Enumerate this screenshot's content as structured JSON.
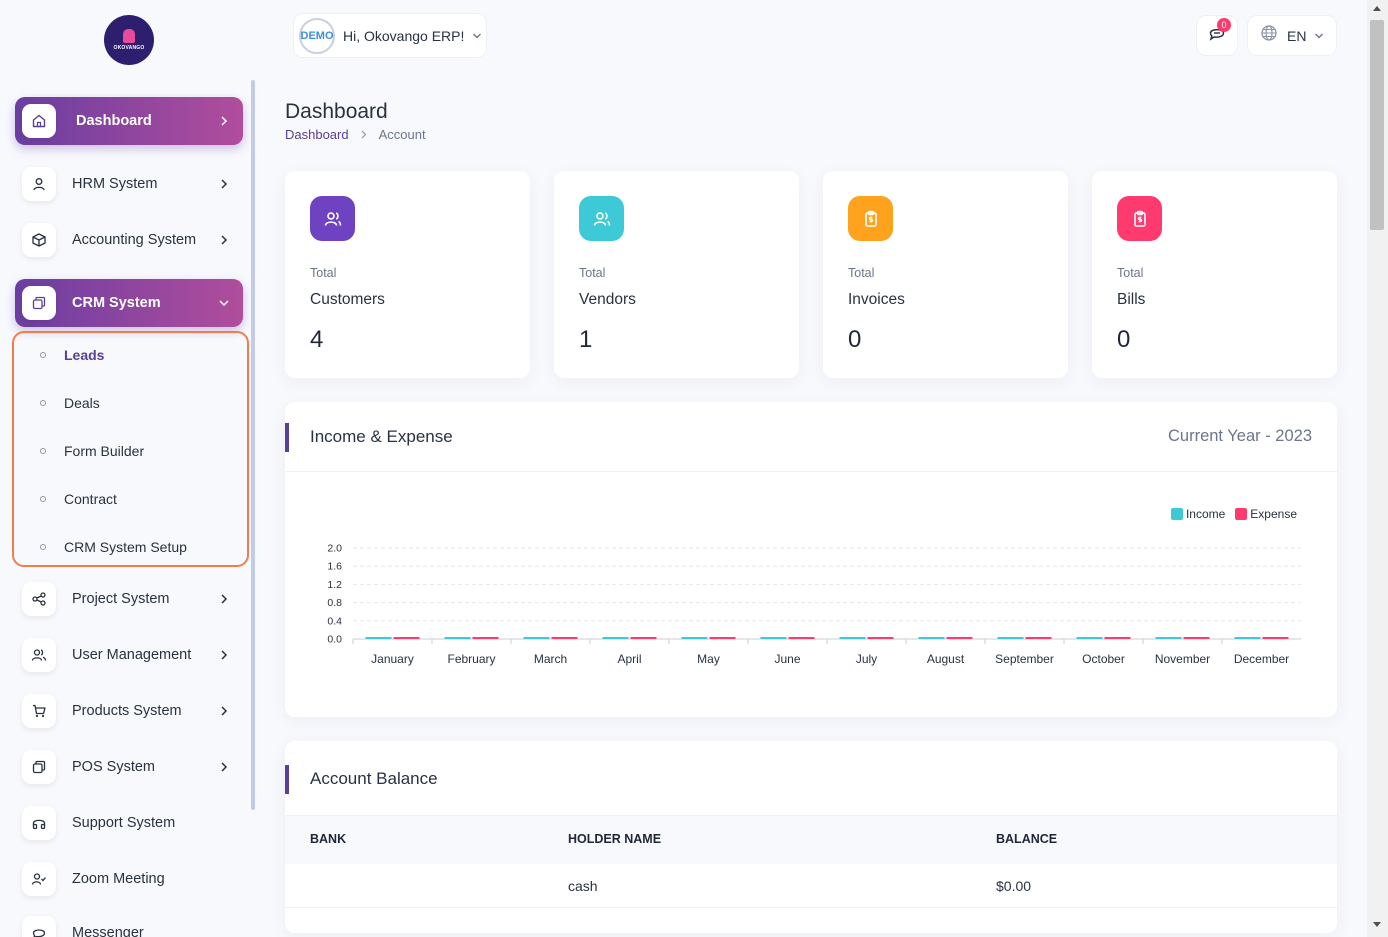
{
  "brand": {
    "logo_text": "OKOVANGO"
  },
  "sidebar": {
    "items": [
      {
        "label": "Dashboard"
      },
      {
        "label": "HRM System"
      },
      {
        "label": "Accounting System"
      },
      {
        "label": "CRM System"
      },
      {
        "label": "Project System"
      },
      {
        "label": "User Management"
      },
      {
        "label": "Products System"
      },
      {
        "label": "POS System"
      },
      {
        "label": "Support System"
      },
      {
        "label": "Zoom Meeting"
      },
      {
        "label": "Messenger"
      }
    ],
    "crm_submenu": [
      {
        "label": "Leads"
      },
      {
        "label": "Deals"
      },
      {
        "label": "Form Builder"
      },
      {
        "label": "Contract"
      },
      {
        "label": "CRM System Setup"
      }
    ]
  },
  "header": {
    "avatar_text": "DEMO",
    "greeting": "Hi, Okovango ERP!",
    "notification_count": "0",
    "language": "EN"
  },
  "page": {
    "title": "Dashboard",
    "breadcrumb": [
      "Dashboard",
      "Account"
    ]
  },
  "stats": [
    {
      "label": "Total",
      "name": "Customers",
      "value": "4",
      "color": "#6f42c1"
    },
    {
      "label": "Total",
      "name": "Vendors",
      "value": "1",
      "color": "#3ec9d6"
    },
    {
      "label": "Total",
      "name": "Invoices",
      "value": "0",
      "color": "#ffa21d"
    },
    {
      "label": "Total",
      "name": "Bills",
      "value": "0",
      "color": "#ff3a6e"
    }
  ],
  "income_expense": {
    "title": "Income & Expense",
    "period": "Current Year - 2023"
  },
  "chart_data": {
    "type": "bar",
    "categories": [
      "January",
      "February",
      "March",
      "April",
      "May",
      "June",
      "July",
      "August",
      "September",
      "October",
      "November",
      "December"
    ],
    "series": [
      {
        "name": "Income",
        "color": "#3ec9d6",
        "values": [
          0,
          0,
          0,
          0,
          0,
          0,
          0,
          0,
          0,
          0,
          0,
          0
        ]
      },
      {
        "name": "Expense",
        "color": "#ff3a6e",
        "values": [
          0,
          0,
          0,
          0,
          0,
          0,
          0,
          0,
          0,
          0,
          0,
          0
        ]
      }
    ],
    "yticks": [
      "0.0",
      "0.4",
      "0.8",
      "1.2",
      "1.6",
      "2.0"
    ],
    "ylim": [
      0,
      2
    ],
    "grid": true,
    "legend": "top-right"
  },
  "account_balance": {
    "title": "Account Balance",
    "columns": [
      "BANK",
      "HOLDER NAME",
      "BALANCE"
    ],
    "rows": [
      {
        "bank": "",
        "holder": "cash",
        "balance": "$0.00"
      }
    ]
  }
}
